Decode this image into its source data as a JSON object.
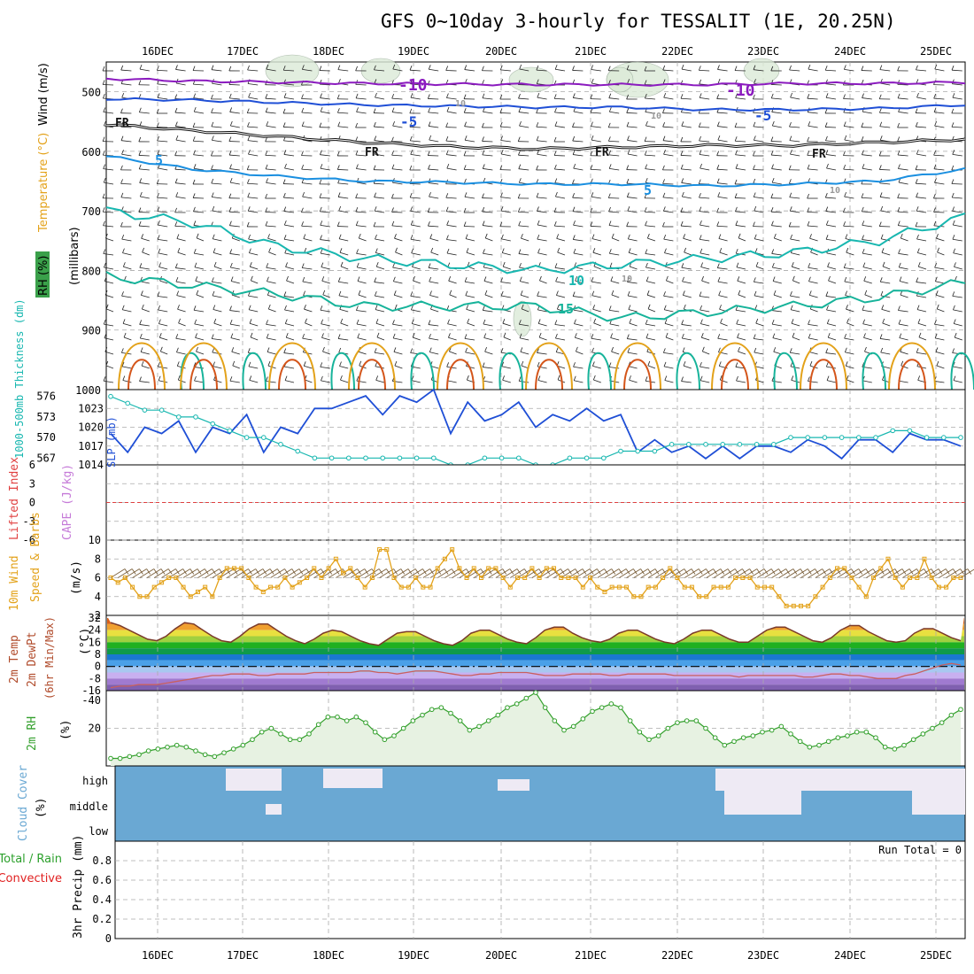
{
  "header": {
    "title": "GFS 0~10day 3-hourly for TESSALIT (1E, 20.25N)"
  },
  "colors": {
    "purple": "#8b1bbf",
    "blue": "#1f4fd6",
    "lblue": "#1a8fe0",
    "teal": "#18b7b0",
    "green": "#16b39a",
    "orange": "#e3a21a",
    "red": "#d4551a",
    "precip_green": "#2ca02c",
    "precip_red": "#e02020",
    "cloud": "#6aa8d3",
    "rh": "#33a02c"
  },
  "chart_data": [
    {
      "type": "contour",
      "id": "upper-air",
      "xlabels": [
        "16DEC",
        "17DEC",
        "18DEC",
        "19DEC",
        "20DEC",
        "21DEC",
        "22DEC",
        "23DEC",
        "24DEC",
        "25DEC"
      ],
      "yaxis": {
        "label": "(millibars)",
        "ticks": [
          500,
          600,
          700,
          800,
          900,
          1000
        ],
        "range": [
          450,
          1000
        ]
      },
      "legend": {
        "rh": "RH (%)",
        "temperature": "Temperature (°C)",
        "wind": "Wind (m/s)"
      },
      "contour_labels": {
        "m10a": "-10",
        "m10b": "-10",
        "m5a": "-5",
        "m5b": "-5",
        "fr1": "FR",
        "fr2": "FR",
        "fr3": "FR",
        "fr4": "FR",
        "p5a": "5",
        "p5b": "5",
        "p10": "10",
        "p15": "15",
        "g10a": "10",
        "g10b": "10",
        "g10c": "10",
        "g10d": "10"
      },
      "isotherms": [
        {
          "name": "-10",
          "color": "#8b1bbf",
          "p": [
            478,
            482,
            484,
            486,
            487,
            488,
            488,
            488,
            486,
            486,
            484
          ]
        },
        {
          "name": "-5",
          "color": "#1f4fd6",
          "p": [
            512,
            514,
            518,
            522,
            524,
            526,
            526,
            530,
            530,
            528,
            522
          ]
        },
        {
          "name": "FR",
          "color": "#111111",
          "p": [
            555,
            565,
            575,
            585,
            592,
            596,
            593,
            590,
            590,
            585,
            580
          ]
        },
        {
          "name": "5",
          "color": "#1a8fe0",
          "p": [
            608,
            630,
            642,
            650,
            652,
            655,
            655,
            658,
            655,
            650,
            630
          ]
        },
        {
          "name": "10",
          "color": "#18b7b0",
          "p": [
            700,
            720,
            760,
            780,
            790,
            800,
            790,
            780,
            770,
            750,
            710
          ]
        },
        {
          "name": "15",
          "color": "#16b39a",
          "p": [
            810,
            825,
            840,
            860,
            860,
            860,
            880,
            870,
            860,
            845,
            820
          ]
        }
      ]
    },
    {
      "type": "line",
      "id": "slp-thickness",
      "series": [
        {
          "name": "SLP (mb)",
          "color": "#1f4fd6",
          "yticks": [
            1014,
            1017,
            1020,
            1023
          ],
          "range": [
            1014,
            1026
          ],
          "values": [
            1019,
            1016,
            1020,
            1019,
            1021,
            1016,
            1020,
            1019,
            1022,
            1016,
            1020,
            1019,
            1023,
            1023,
            1024,
            1025,
            1022,
            1025,
            1024,
            1026,
            1019,
            1024,
            1021,
            1022,
            1024,
            1020,
            1022,
            1021,
            1023,
            1021,
            1022,
            1016,
            1018,
            1016,
            1017,
            1015,
            1017,
            1015,
            1017,
            1017,
            1016,
            1018,
            1017,
            1015,
            1018,
            1018,
            1016,
            1019,
            1018,
            1018,
            1017
          ]
        },
        {
          "name": "1000-500mb Thickness (dm)",
          "color": "#18b7b0",
          "yticks": [
            567,
            570,
            573,
            576
          ],
          "range": [
            566,
            577
          ],
          "values": [
            576,
            575,
            574,
            574,
            573,
            573,
            572,
            571,
            570,
            570,
            569,
            568,
            567,
            567,
            567,
            567,
            567,
            567,
            567,
            567,
            566,
            566,
            567,
            567,
            567,
            566,
            566,
            567,
            567,
            567,
            568,
            568,
            568,
            569,
            569,
            569,
            569,
            569,
            569,
            569,
            570,
            570,
            570,
            570,
            570,
            570,
            571,
            571,
            570,
            570,
            570
          ]
        }
      ],
      "legend": {
        "slp": "SLP (mb)",
        "thick": "1000-500mb Thickness (dm)"
      }
    },
    {
      "type": "line",
      "id": "cape-li",
      "yticks": [
        "6",
        "3",
        "0",
        "-3",
        "-6"
      ],
      "range": [
        -6,
        6
      ],
      "legend": {
        "li": "Lifted Index",
        "cape": "CAPE (J/kg)"
      }
    },
    {
      "type": "line",
      "id": "wind10m",
      "ylabel": "(m/s)",
      "yticks": [
        2,
        4,
        6,
        8,
        10
      ],
      "range": [
        2,
        10
      ],
      "legend": {
        "title": "10m Wind",
        "sub": "Speed & Barbs"
      },
      "values": [
        6,
        5.5,
        6,
        5,
        4,
        4,
        5,
        5.5,
        6,
        6,
        5,
        4,
        4.5,
        5,
        4,
        6,
        7,
        7,
        7,
        6,
        5,
        4.5,
        5,
        5,
        6,
        5,
        5.5,
        6,
        7,
        6,
        7,
        8,
        6.5,
        7,
        6,
        5,
        6,
        9,
        9,
        6,
        5,
        5,
        6,
        5,
        5,
        7,
        8,
        9,
        7,
        6,
        7,
        6,
        7,
        7,
        6,
        5,
        6,
        6,
        7,
        6,
        7,
        7,
        6,
        6,
        6,
        5,
        6,
        5,
        4.5,
        5,
        5,
        5,
        4,
        4,
        5,
        5,
        6,
        7,
        6,
        5,
        5,
        4,
        4,
        5,
        5,
        5,
        6,
        6,
        6,
        5,
        5,
        5,
        4,
        3,
        3,
        3,
        3,
        4,
        5,
        6,
        7,
        7,
        6,
        5,
        4,
        6,
        7,
        8,
        6,
        5,
        6,
        6,
        8,
        6,
        5,
        5,
        6,
        6
      ]
    },
    {
      "type": "area",
      "id": "temp2m",
      "ylabel": "(°C)",
      "yticks": [
        -16,
        -8,
        0,
        8,
        16,
        24,
        32
      ],
      "extra_tick": "-40",
      "range": [
        -16,
        32
      ],
      "legend": {
        "a": "2m Temp",
        "b": "2m DewPt",
        "c": "(6hr Min/Max)"
      },
      "temp": [
        29,
        27,
        24,
        21,
        18,
        17,
        20,
        25,
        29,
        28,
        24,
        20,
        17,
        16,
        20,
        25,
        28,
        28,
        24,
        20,
        17,
        15,
        18,
        22,
        24,
        23,
        20,
        17,
        15,
        14,
        18,
        22,
        23,
        23,
        20,
        17,
        15,
        14,
        17,
        22,
        24,
        24,
        21,
        18,
        16,
        15,
        19,
        24,
        26,
        26,
        22,
        19,
        17,
        16,
        18,
        22,
        24,
        24,
        21,
        18,
        16,
        15,
        18,
        22,
        24,
        24,
        21,
        18,
        16,
        16,
        20,
        24,
        26,
        26,
        23,
        20,
        17,
        16,
        19,
        24,
        27,
        27,
        23,
        20,
        17,
        16,
        17,
        22,
        25,
        25,
        22,
        19,
        17
      ],
      "dewpt": [
        -14,
        -13,
        -13,
        -12,
        -12,
        -12,
        -11,
        -10,
        -9,
        -8,
        -7,
        -6,
        -6,
        -5,
        -5,
        -5,
        -6,
        -6,
        -5,
        -5,
        -5,
        -5,
        -4,
        -4,
        -4,
        -4,
        -4,
        -3,
        -3,
        -4,
        -4,
        -5,
        -4,
        -3,
        -3,
        -3,
        -4,
        -5,
        -6,
        -6,
        -5,
        -5,
        -4,
        -4,
        -4,
        -4,
        -5,
        -6,
        -6,
        -6,
        -5,
        -5,
        -5,
        -5,
        -6,
        -6,
        -5,
        -5,
        -5,
        -5,
        -5,
        -6,
        -6,
        -6,
        -6,
        -6,
        -6,
        -6,
        -7,
        -6,
        -6,
        -6,
        -6,
        -6,
        -6,
        -7,
        -7,
        -6,
        -5,
        -5,
        -6,
        -6,
        -7,
        -8,
        -8,
        -8,
        -6,
        -5,
        -3,
        -1,
        1,
        2,
        1
      ]
    },
    {
      "type": "area",
      "id": "rh2m",
      "ylabel": "(%)",
      "yticks": [
        20
      ],
      "range": [
        0,
        40
      ],
      "legend": {
        "title": "2m RH"
      },
      "values": [
        4,
        4,
        5,
        6,
        8,
        9,
        10,
        11,
        10,
        8,
        6,
        5,
        7,
        9,
        11,
        14,
        18,
        20,
        17,
        14,
        14,
        17,
        22,
        26,
        26,
        24,
        26,
        23,
        18,
        14,
        16,
        20,
        24,
        27,
        30,
        31,
        28,
        24,
        19,
        21,
        24,
        27,
        31,
        33,
        36,
        39,
        31,
        24,
        19,
        21,
        25,
        29,
        31,
        33,
        31,
        24,
        18,
        14,
        16,
        20,
        23,
        24,
        24,
        20,
        15,
        11,
        13,
        15,
        16,
        18,
        19,
        21,
        17,
        13,
        10,
        11,
        13,
        15,
        16,
        18,
        18,
        15,
        10,
        9,
        11,
        14,
        17,
        20,
        23,
        27,
        30
      ]
    },
    {
      "type": "area",
      "id": "cloud",
      "labels": [
        "high",
        "middle",
        "low"
      ],
      "legend": {
        "title": "Cloud Cover",
        "unit": "(%)"
      }
    },
    {
      "type": "bar",
      "id": "precip",
      "ylabel": "3hr Precip (mm)",
      "yticks": [
        "0",
        "0.2",
        "0.4",
        "0.6",
        "0.8"
      ],
      "range": [
        0,
        1
      ],
      "legend": {
        "total": "Total / Rain",
        "conv": "Convective"
      },
      "run_total": "Run Total = 0"
    }
  ]
}
